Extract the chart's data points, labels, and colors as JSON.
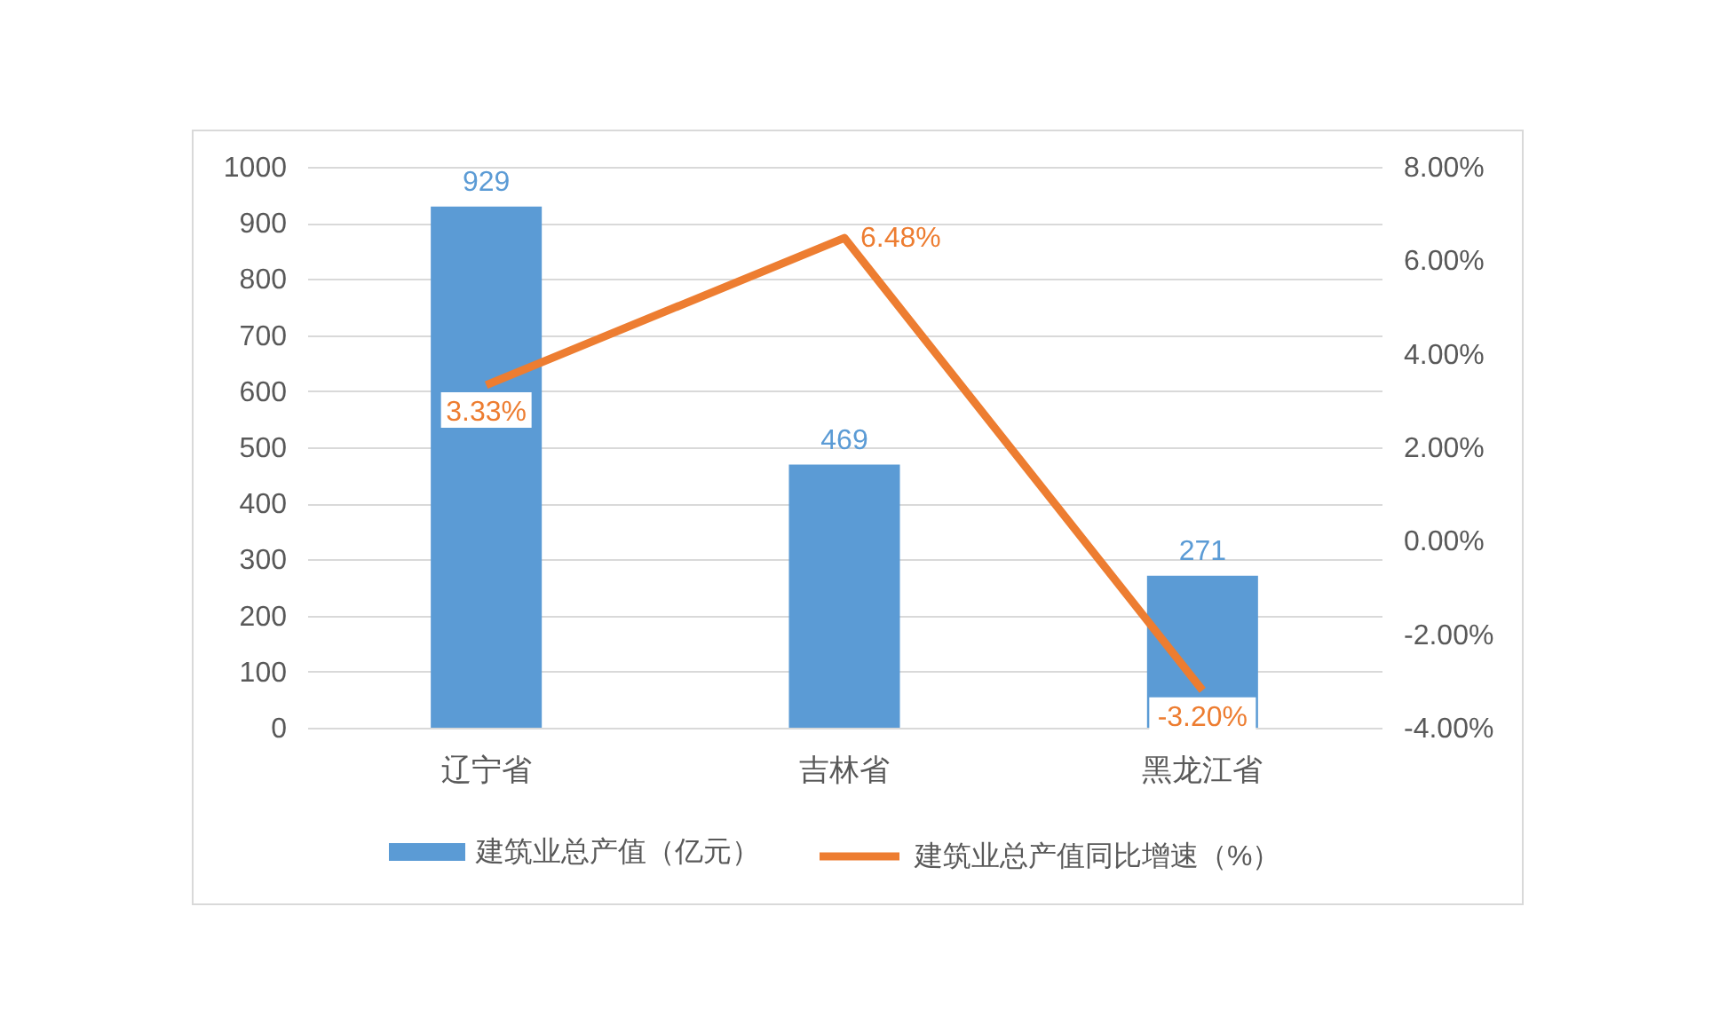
{
  "chart_data": {
    "type": "bar",
    "categories": [
      "辽宁省",
      "吉林省",
      "黑龙江省"
    ],
    "series": [
      {
        "name": "建筑业总产值（亿元）",
        "color": "#5b9bd5",
        "values": [
          929,
          469,
          271
        ],
        "value_labels": [
          "929",
          "469",
          "271"
        ]
      },
      {
        "name": "建筑业总产值同比增速（%）",
        "type": "line",
        "axis": "y2",
        "color": "#ed7d31",
        "values": [
          3.33,
          6.48,
          -3.2
        ],
        "value_labels": [
          "3.33%",
          "6.48%",
          "-3.20%"
        ]
      }
    ],
    "ylim": [
      0,
      1000
    ],
    "yticks": [
      0,
      100,
      200,
      300,
      400,
      500,
      600,
      700,
      800,
      900,
      1000
    ],
    "y2lim": [
      -4,
      8
    ],
    "y2ticks": [
      {
        "value": -4,
        "label": "-4.00%"
      },
      {
        "value": -2,
        "label": "-2.00%"
      },
      {
        "value": 0,
        "label": "0.00%"
      },
      {
        "value": 2,
        "label": "2.00%"
      },
      {
        "value": 4,
        "label": "4.00%"
      },
      {
        "value": 6,
        "label": "6.00%"
      },
      {
        "value": 8,
        "label": "8.00%"
      }
    ],
    "grid": "y",
    "legend": "bottom"
  }
}
